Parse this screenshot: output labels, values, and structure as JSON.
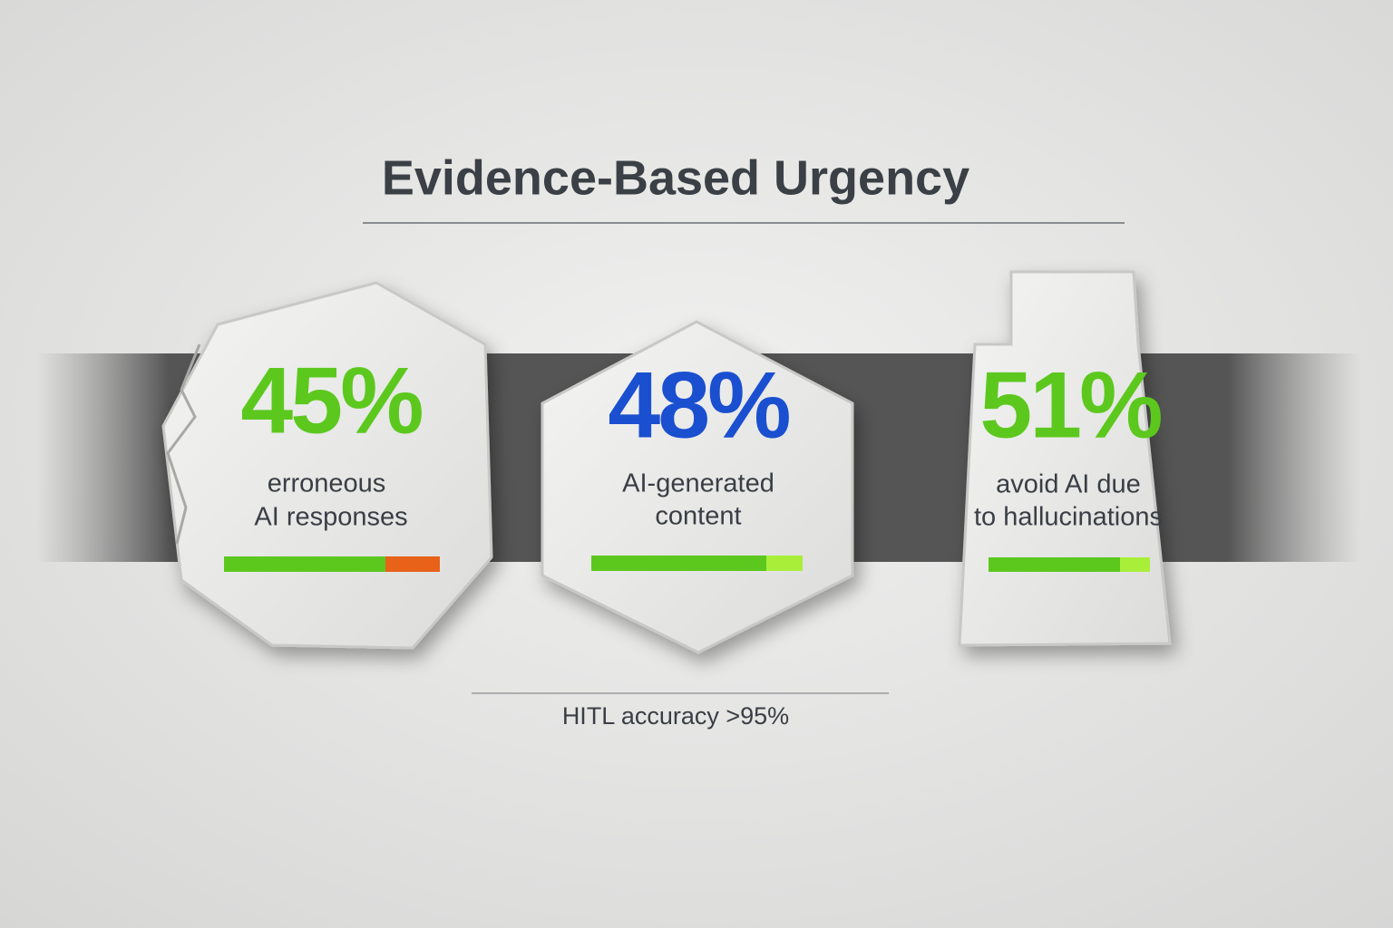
{
  "title": "Evidence-Based Urgency",
  "cards": [
    {
      "stat": "45%",
      "lines": [
        "erroneous",
        "AI responses"
      ]
    },
    {
      "stat": "48%",
      "lines": [
        "AI-generated",
        "content"
      ]
    },
    {
      "stat": "51%",
      "lines": [
        "avoid AI due",
        "to hallucinations"
      ]
    }
  ],
  "footnote": "HITL accuracy >95%"
}
